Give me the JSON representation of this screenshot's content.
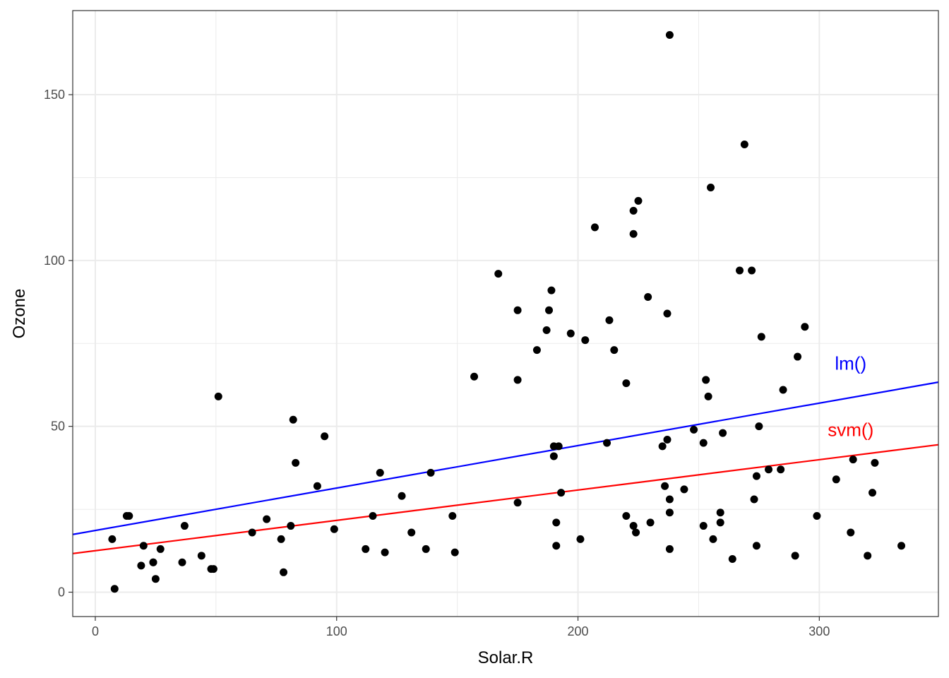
{
  "chart_data": {
    "type": "scatter",
    "xlabel": "Solar.R",
    "ylabel": "Ozone",
    "xlim": [
      -9.35,
      349.35
    ],
    "ylim": [
      -7.35,
      175.35
    ],
    "x_ticks": [
      0,
      100,
      200,
      300
    ],
    "y_ticks": [
      0,
      50,
      100,
      150
    ],
    "x_minor": [
      50,
      150,
      250
    ],
    "y_minor": [
      25,
      75,
      125
    ],
    "grid": true,
    "colors": {
      "points": "#000000",
      "lm": "#0000ff",
      "svm": "#ff0000",
      "grid": "#ebebeb",
      "panel_border": "#333333"
    },
    "lines": [
      {
        "name": "lm()",
        "color": "#0000ff",
        "intercept": 18.6,
        "slope": 0.128,
        "label_at": [
          313,
          69
        ]
      },
      {
        "name": "svm()",
        "color": "#ff0000",
        "intercept": 12.5,
        "slope": 0.0915,
        "label_at": [
          313,
          49
        ]
      }
    ],
    "points": [
      [
        7,
        16
      ],
      [
        8,
        1
      ],
      [
        13,
        23
      ],
      [
        14,
        23
      ],
      [
        19,
        8
      ],
      [
        20,
        14
      ],
      [
        24,
        9
      ],
      [
        24,
        9
      ],
      [
        25,
        4
      ],
      [
        27,
        13
      ],
      [
        36,
        9
      ],
      [
        37,
        20
      ],
      [
        44,
        11
      ],
      [
        48,
        7
      ],
      [
        49,
        7
      ],
      [
        51,
        59
      ],
      [
        65,
        18
      ],
      [
        71,
        22
      ],
      [
        77,
        16
      ],
      [
        78,
        6
      ],
      [
        81,
        20
      ],
      [
        82,
        52
      ],
      [
        83,
        39
      ],
      [
        92,
        32
      ],
      [
        95,
        47
      ],
      [
        99,
        19
      ],
      [
        112,
        13
      ],
      [
        115,
        23
      ],
      [
        118,
        36
      ],
      [
        120,
        12
      ],
      [
        127,
        29
      ],
      [
        131,
        18
      ],
      [
        137,
        13
      ],
      [
        139,
        36
      ],
      [
        148,
        23
      ],
      [
        149,
        12
      ],
      [
        157,
        65
      ],
      [
        167,
        96
      ],
      [
        175,
        64
      ],
      [
        175,
        85
      ],
      [
        175,
        27
      ],
      [
        183,
        73
      ],
      [
        187,
        79
      ],
      [
        188,
        85
      ],
      [
        189,
        91
      ],
      [
        190,
        44
      ],
      [
        190,
        41
      ],
      [
        191,
        21
      ],
      [
        191,
        14
      ],
      [
        192,
        44
      ],
      [
        193,
        30
      ],
      [
        197,
        78
      ],
      [
        201,
        16
      ],
      [
        203,
        76
      ],
      [
        207,
        110
      ],
      [
        212,
        45
      ],
      [
        213,
        82
      ],
      [
        215,
        73
      ],
      [
        220,
        63
      ],
      [
        220,
        23
      ],
      [
        223,
        115
      ],
      [
        223,
        108
      ],
      [
        223,
        20
      ],
      [
        224,
        18
      ],
      [
        225,
        118
      ],
      [
        229,
        89
      ],
      [
        230,
        21
      ],
      [
        235,
        44
      ],
      [
        236,
        32
      ],
      [
        237,
        84
      ],
      [
        237,
        46
      ],
      [
        238,
        168
      ],
      [
        238,
        28
      ],
      [
        238,
        24
      ],
      [
        238,
        13
      ],
      [
        244,
        31
      ],
      [
        248,
        49
      ],
      [
        252,
        45
      ],
      [
        252,
        20
      ],
      [
        253,
        64
      ],
      [
        254,
        59
      ],
      [
        255,
        122
      ],
      [
        256,
        16
      ],
      [
        259,
        24
      ],
      [
        259,
        21
      ],
      [
        260,
        48
      ],
      [
        264,
        10
      ],
      [
        267,
        97
      ],
      [
        269,
        135
      ],
      [
        272,
        97
      ],
      [
        273,
        28
      ],
      [
        274,
        35
      ],
      [
        274,
        14
      ],
      [
        275,
        50
      ],
      [
        276,
        77
      ],
      [
        279,
        37
      ],
      [
        284,
        37
      ],
      [
        285,
        61
      ],
      [
        290,
        11
      ],
      [
        291,
        71
      ],
      [
        294,
        80
      ],
      [
        299,
        23
      ],
      [
        307,
        34
      ],
      [
        313,
        18
      ],
      [
        314,
        40
      ],
      [
        320,
        11
      ],
      [
        322,
        30
      ],
      [
        323,
        39
      ],
      [
        334,
        14
      ]
    ]
  }
}
